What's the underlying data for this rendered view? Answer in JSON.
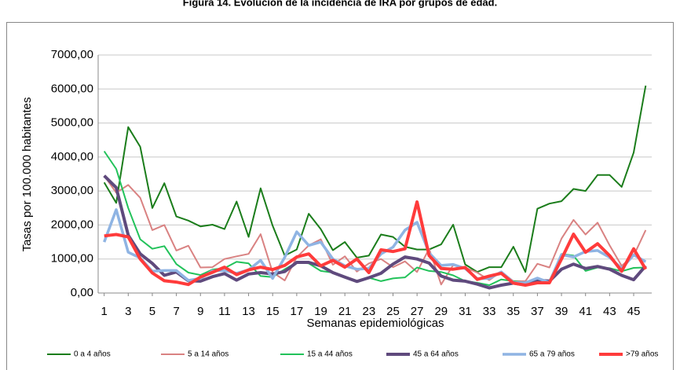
{
  "chart_data": {
    "type": "line",
    "title": "Figura 14. Evolución de la incidencia de IRA por grupos de edad.",
    "x_label": "Semanas epidemiológicas",
    "y_label": "Tasas por 100.000 habitantes",
    "x": [
      1,
      2,
      3,
      4,
      5,
      6,
      7,
      8,
      9,
      10,
      11,
      12,
      13,
      14,
      15,
      16,
      17,
      18,
      19,
      20,
      21,
      22,
      23,
      24,
      25,
      26,
      27,
      28,
      29,
      30,
      31,
      32,
      33,
      34,
      35,
      36,
      37,
      38,
      39,
      40,
      41,
      42,
      43,
      44,
      45,
      46
    ],
    "xlim": [
      0.5,
      46.5
    ],
    "xticks": [
      1,
      3,
      5,
      7,
      9,
      11,
      13,
      15,
      17,
      19,
      21,
      23,
      25,
      27,
      29,
      31,
      33,
      35,
      37,
      39,
      41,
      43,
      45
    ],
    "ylim": [
      0,
      7000
    ],
    "yticks": [
      {
        "value": 0,
        "label": "0,00"
      },
      {
        "value": 1000,
        "label": "1000,00"
      },
      {
        "value": 2000,
        "label": "2000,00"
      },
      {
        "value": 3000,
        "label": "3000,00"
      },
      {
        "value": 4000,
        "label": "4000,00"
      },
      {
        "value": 5000,
        "label": "5000,00"
      },
      {
        "value": 6000,
        "label": "6000,00"
      },
      {
        "value": 7000,
        "label": "7000,00"
      }
    ],
    "grid": true,
    "legend": "bottom",
    "series": [
      {
        "name": "0 a 4 años",
        "color": "#1b7d1b",
        "line_width": 2,
        "values": [
          3250,
          2650,
          4880,
          4300,
          2500,
          3230,
          2250,
          2130,
          1960,
          2010,
          1880,
          2690,
          1650,
          3080,
          1980,
          1100,
          1280,
          2330,
          1880,
          1260,
          1500,
          1040,
          1100,
          1720,
          1650,
          1360,
          1280,
          1280,
          1430,
          2010,
          840,
          620,
          760,
          760,
          1360,
          620,
          2480,
          2630,
          2700,
          3060,
          3000,
          3470,
          3470,
          3120,
          4130,
          6100
        ]
      },
      {
        "name": "5 a 14 años",
        "color": "#d98282",
        "line_width": 2,
        "values": [
          3450,
          2950,
          3180,
          2800,
          1850,
          2000,
          1250,
          1390,
          750,
          760,
          1000,
          1080,
          1150,
          1730,
          610,
          370,
          1050,
          1400,
          1580,
          830,
          1080,
          630,
          870,
          1000,
          760,
          930,
          620,
          1300,
          250,
          820,
          750,
          600,
          380,
          630,
          350,
          350,
          860,
          750,
          1600,
          2150,
          1720,
          2070,
          1400,
          800,
          1100,
          1850
        ]
      },
      {
        "name": "15 a 44 años",
        "color": "#22c25a",
        "line_width": 2,
        "values": [
          4170,
          3650,
          2500,
          1580,
          1300,
          1380,
          850,
          600,
          530,
          690,
          730,
          920,
          870,
          500,
          470,
          700,
          900,
          870,
          650,
          600,
          450,
          350,
          450,
          350,
          430,
          460,
          750,
          650,
          620,
          520,
          350,
          300,
          230,
          400,
          350,
          310,
          370,
          360,
          1150,
          1100,
          650,
          750,
          730,
          640,
          740,
          750
        ]
      },
      {
        "name": "45 a 64 años",
        "color": "#5f4a7d",
        "line_width": 4,
        "values": [
          3450,
          3100,
          1700,
          1150,
          870,
          520,
          620,
          360,
          350,
          480,
          570,
          380,
          560,
          600,
          560,
          630,
          900,
          900,
          800,
          600,
          470,
          340,
          450,
          580,
          850,
          1060,
          1000,
          880,
          500,
          380,
          350,
          260,
          150,
          230,
          290,
          240,
          380,
          350,
          700,
          850,
          720,
          780,
          700,
          520,
          390,
          800
        ]
      },
      {
        "name": "65 a 79 años",
        "color": "#8fb4e3",
        "line_width": 3.5,
        "values": [
          1500,
          2450,
          1200,
          1030,
          640,
          660,
          660,
          370,
          430,
          650,
          660,
          580,
          680,
          960,
          430,
          1050,
          1800,
          1400,
          1500,
          1000,
          800,
          700,
          720,
          1150,
          1350,
          1850,
          2080,
          1180,
          810,
          840,
          720,
          420,
          430,
          620,
          310,
          300,
          440,
          310,
          1130,
          1060,
          1220,
          1250,
          1050,
          720,
          1120,
          920
        ]
      },
      {
        "name": ">79 años",
        "color": "#ff3b3b",
        "line_width": 4,
        "values": [
          1680,
          1720,
          1650,
          1000,
          590,
          360,
          320,
          250,
          470,
          610,
          760,
          540,
          680,
          760,
          690,
          810,
          1060,
          1150,
          800,
          960,
          760,
          1000,
          600,
          1270,
          1220,
          1300,
          2680,
          1100,
          720,
          700,
          750,
          400,
          500,
          580,
          290,
          230,
          300,
          300,
          1000,
          1730,
          1200,
          1450,
          1100,
          640,
          1300,
          700
        ]
      }
    ]
  }
}
